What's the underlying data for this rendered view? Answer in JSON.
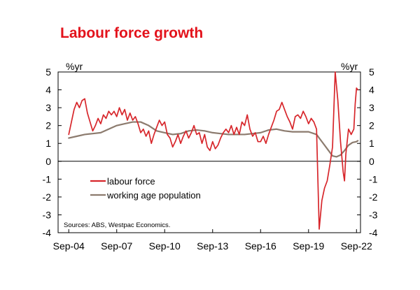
{
  "chart_data": {
    "type": "line",
    "title": "Labour force growth",
    "y_unit_left": "%yr",
    "y_unit_right": "%yr",
    "ylim": [
      -4,
      5
    ],
    "yticks": [
      5,
      4,
      3,
      2,
      1,
      0,
      -1,
      -2,
      -3,
      -4
    ],
    "xlim": [
      "2004-01",
      "2022-12"
    ],
    "xticks": [
      {
        "label": "Sep-04",
        "date": "2004-09"
      },
      {
        "label": "Sep-07",
        "date": "2007-09"
      },
      {
        "label": "Sep-10",
        "date": "2010-09"
      },
      {
        "label": "Sep-13",
        "date": "2013-09"
      },
      {
        "label": "Sep-16",
        "date": "2016-09"
      },
      {
        "label": "Sep-19",
        "date": "2019-09"
      },
      {
        "label": "Sep-22",
        "date": "2022-09"
      }
    ],
    "legend_position": "lower-left",
    "source_note": "Sources: ABS, Westpac Economics.",
    "series": [
      {
        "name": "labour force",
        "color": "#d7262b",
        "points": [
          [
            "2004-09",
            1.5
          ],
          [
            "2004-11",
            2.2
          ],
          [
            "2005-01",
            2.9
          ],
          [
            "2005-03",
            3.3
          ],
          [
            "2005-05",
            3.0
          ],
          [
            "2005-07",
            3.4
          ],
          [
            "2005-09",
            3.5
          ],
          [
            "2005-11",
            2.7
          ],
          [
            "2006-01",
            2.2
          ],
          [
            "2006-03",
            1.7
          ],
          [
            "2006-05",
            2.0
          ],
          [
            "2006-07",
            2.4
          ],
          [
            "2006-09",
            2.1
          ],
          [
            "2006-11",
            2.6
          ],
          [
            "2007-01",
            2.4
          ],
          [
            "2007-03",
            2.8
          ],
          [
            "2007-05",
            2.6
          ],
          [
            "2007-07",
            2.8
          ],
          [
            "2007-09",
            2.5
          ],
          [
            "2007-11",
            3.0
          ],
          [
            "2008-01",
            2.6
          ],
          [
            "2008-03",
            2.9
          ],
          [
            "2008-05",
            2.3
          ],
          [
            "2008-07",
            2.7
          ],
          [
            "2008-09",
            2.3
          ],
          [
            "2008-11",
            2.5
          ],
          [
            "2009-01",
            2.1
          ],
          [
            "2009-03",
            1.6
          ],
          [
            "2009-05",
            1.8
          ],
          [
            "2009-07",
            1.4
          ],
          [
            "2009-09",
            1.7
          ],
          [
            "2009-11",
            1.0
          ],
          [
            "2010-01",
            1.5
          ],
          [
            "2010-03",
            1.9
          ],
          [
            "2010-05",
            2.3
          ],
          [
            "2010-07",
            2.0
          ],
          [
            "2010-09",
            2.2
          ],
          [
            "2010-11",
            1.5
          ],
          [
            "2011-01",
            1.3
          ],
          [
            "2011-03",
            0.8
          ],
          [
            "2011-05",
            1.1
          ],
          [
            "2011-07",
            1.5
          ],
          [
            "2011-09",
            1.0
          ],
          [
            "2011-11",
            1.4
          ],
          [
            "2012-01",
            1.7
          ],
          [
            "2012-03",
            1.3
          ],
          [
            "2012-05",
            1.6
          ],
          [
            "2012-07",
            2.0
          ],
          [
            "2012-09",
            1.5
          ],
          [
            "2012-11",
            1.6
          ],
          [
            "2013-01",
            1.0
          ],
          [
            "2013-03",
            1.5
          ],
          [
            "2013-05",
            0.8
          ],
          [
            "2013-07",
            0.6
          ],
          [
            "2013-09",
            1.1
          ],
          [
            "2013-11",
            0.7
          ],
          [
            "2014-01",
            0.9
          ],
          [
            "2014-03",
            1.3
          ],
          [
            "2014-05",
            1.6
          ],
          [
            "2014-07",
            1.8
          ],
          [
            "2014-09",
            1.6
          ],
          [
            "2014-11",
            2.0
          ],
          [
            "2015-01",
            1.5
          ],
          [
            "2015-03",
            1.9
          ],
          [
            "2015-05",
            1.5
          ],
          [
            "2015-07",
            2.2
          ],
          [
            "2015-09",
            2.0
          ],
          [
            "2015-11",
            2.6
          ],
          [
            "2016-01",
            1.8
          ],
          [
            "2016-03",
            1.4
          ],
          [
            "2016-05",
            1.6
          ],
          [
            "2016-07",
            1.1
          ],
          [
            "2016-09",
            1.1
          ],
          [
            "2016-11",
            1.4
          ],
          [
            "2017-01",
            1.0
          ],
          [
            "2017-03",
            1.5
          ],
          [
            "2017-05",
            1.9
          ],
          [
            "2017-07",
            2.3
          ],
          [
            "2017-09",
            2.8
          ],
          [
            "2017-11",
            2.9
          ],
          [
            "2018-01",
            3.3
          ],
          [
            "2018-03",
            2.9
          ],
          [
            "2018-05",
            2.5
          ],
          [
            "2018-07",
            2.2
          ],
          [
            "2018-09",
            1.8
          ],
          [
            "2018-11",
            2.5
          ],
          [
            "2019-01",
            2.6
          ],
          [
            "2019-03",
            2.4
          ],
          [
            "2019-05",
            2.8
          ],
          [
            "2019-07",
            2.5
          ],
          [
            "2019-09",
            2.1
          ],
          [
            "2019-11",
            2.4
          ],
          [
            "2020-01",
            2.2
          ],
          [
            "2020-03",
            1.8
          ],
          [
            "2020-05",
            -3.8
          ],
          [
            "2020-07",
            -2.2
          ],
          [
            "2020-09",
            -1.5
          ],
          [
            "2020-11",
            -1.1
          ],
          [
            "2021-01",
            -0.2
          ],
          [
            "2021-03",
            0.8
          ],
          [
            "2021-05",
            5.0
          ],
          [
            "2021-07",
            3.4
          ],
          [
            "2021-09",
            1.1
          ],
          [
            "2021-11",
            -0.6
          ],
          [
            "2021-12",
            -1.1
          ],
          [
            "2022-01",
            0.4
          ],
          [
            "2022-03",
            1.8
          ],
          [
            "2022-05",
            1.5
          ],
          [
            "2022-07",
            1.8
          ],
          [
            "2022-08",
            3.2
          ],
          [
            "2022-09",
            4.1
          ],
          [
            "2022-10",
            4.0
          ]
        ]
      },
      {
        "name": "working age population",
        "color": "#8c7b6e",
        "points": [
          [
            "2004-09",
            1.3
          ],
          [
            "2005-03",
            1.4
          ],
          [
            "2005-09",
            1.5
          ],
          [
            "2006-03",
            1.55
          ],
          [
            "2006-09",
            1.6
          ],
          [
            "2007-03",
            1.8
          ],
          [
            "2007-09",
            2.0
          ],
          [
            "2008-03",
            2.1
          ],
          [
            "2008-09",
            2.2
          ],
          [
            "2009-03",
            2.2
          ],
          [
            "2009-09",
            2.0
          ],
          [
            "2010-03",
            1.7
          ],
          [
            "2010-09",
            1.6
          ],
          [
            "2011-03",
            1.5
          ],
          [
            "2011-09",
            1.55
          ],
          [
            "2012-03",
            1.7
          ],
          [
            "2012-09",
            1.75
          ],
          [
            "2013-03",
            1.7
          ],
          [
            "2013-09",
            1.6
          ],
          [
            "2014-03",
            1.55
          ],
          [
            "2014-09",
            1.5
          ],
          [
            "2015-03",
            1.5
          ],
          [
            "2015-09",
            1.5
          ],
          [
            "2016-03",
            1.55
          ],
          [
            "2016-09",
            1.6
          ],
          [
            "2017-03",
            1.75
          ],
          [
            "2017-09",
            1.8
          ],
          [
            "2018-03",
            1.7
          ],
          [
            "2018-09",
            1.65
          ],
          [
            "2019-03",
            1.65
          ],
          [
            "2019-09",
            1.65
          ],
          [
            "2020-03",
            1.5
          ],
          [
            "2020-06",
            1.2
          ],
          [
            "2020-09",
            0.9
          ],
          [
            "2020-12",
            0.6
          ],
          [
            "2021-03",
            0.3
          ],
          [
            "2021-06",
            0.25
          ],
          [
            "2021-09",
            0.35
          ],
          [
            "2021-12",
            0.6
          ],
          [
            "2022-03",
            0.9
          ],
          [
            "2022-06",
            1.05
          ],
          [
            "2022-09",
            1.1
          ],
          [
            "2022-10",
            1.15
          ]
        ]
      }
    ]
  }
}
